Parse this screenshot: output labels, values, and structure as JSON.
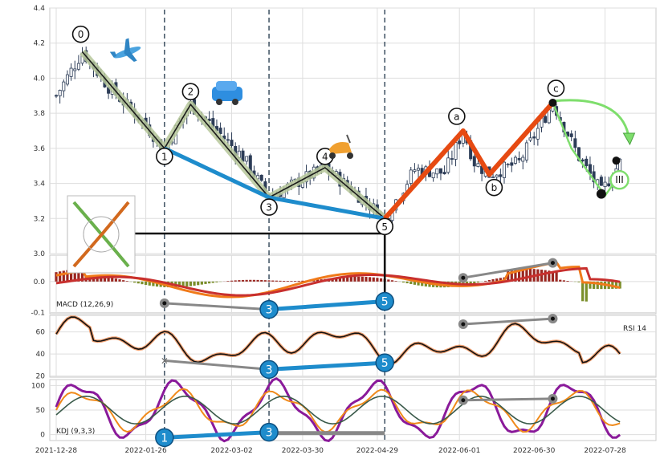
{
  "chart_data": {
    "type": "line",
    "x_tick_labels": [
      "2021-12-28",
      "2022-01-26",
      "2022-03-02",
      "2022-03-30",
      "2022-04-29",
      "2022-06-01",
      "2022-06-30",
      "2022-07-28"
    ],
    "panels": {
      "price": {
        "ylim": [
          3.0,
          4.4
        ],
        "ytick_labels": [
          "3.0",
          "3.2",
          "3.4",
          "3.6",
          "3.8",
          "4.0",
          "4.2",
          "4.4"
        ],
        "waves": [
          {
            "label": "0",
            "t": 7,
            "y": 4.15
          },
          {
            "label": "1",
            "t": 29,
            "y": 3.6
          },
          {
            "label": "2",
            "t": 36,
            "y": 3.85
          },
          {
            "label": "3",
            "t": 57,
            "y": 3.32
          },
          {
            "label": "4",
            "t": 72,
            "y": 3.49
          },
          {
            "label": "5",
            "t": 88,
            "y": 3.2
          },
          {
            "label": "a",
            "t": 109,
            "y": 3.7
          },
          {
            "label": "b",
            "t": 116,
            "y": 3.45
          },
          {
            "label": "c",
            "t": 133,
            "y": 3.86
          }
        ],
        "end_marker_label": "III"
      },
      "macd": {
        "label": "MACD (12,26,9)",
        "ylim": [
          -0.1,
          0.05
        ],
        "ytick_labels": [
          "-0.1",
          "0.0"
        ],
        "divergence_labels": [
          "3",
          "5"
        ]
      },
      "rsi": {
        "label": "RSI 14",
        "ylim": [
          20,
          75
        ],
        "ytick_labels": [
          "20",
          "40",
          "60"
        ],
        "divergence_labels": [
          "3",
          "5"
        ]
      },
      "kdj": {
        "label": "KDJ (9,3,3)",
        "ylim": [
          -10,
          110
        ],
        "ytick_labels": [
          "0",
          "50",
          "100"
        ],
        "divergence_labels": [
          "1",
          "3"
        ]
      }
    },
    "colors": {
      "up_candle": "#2c3c57",
      "impulse": "#1e8ccc",
      "correction": "#e64a12",
      "wave_band": "#b6c79a",
      "macd_line": "#f07a1a",
      "signal_line": "#c8302e",
      "hist_pos": "#9a2620",
      "hist_neg": "#7a8e2a",
      "kdj_j": "#8a1a9a",
      "kdj_k": "#f08a1a",
      "kdj_d": "#3a5a4a",
      "grey_div": "#888888",
      "future_arrow": "#7ede6c"
    },
    "icons": [
      "airplane-icon",
      "car-icon",
      "scooter-icon",
      "fibonacci-thumbnail"
    ]
  }
}
